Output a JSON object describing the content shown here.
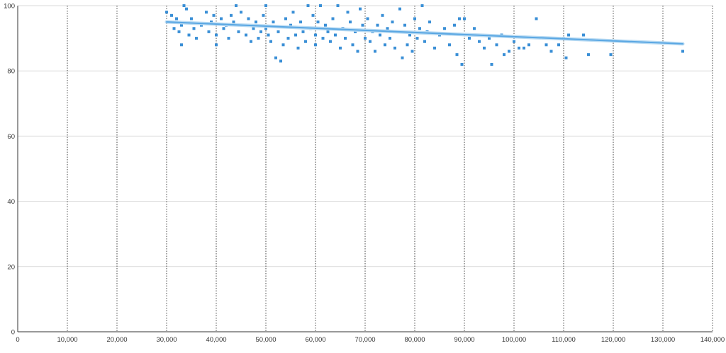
{
  "chart_data": {
    "type": "scatter",
    "title": "",
    "xlabel": "",
    "ylabel": "",
    "xlim": [
      0,
      140000
    ],
    "ylim": [
      0,
      100
    ],
    "x_ticks": [
      0,
      10000,
      20000,
      30000,
      40000,
      50000,
      60000,
      70000,
      80000,
      90000,
      100000,
      110000,
      120000,
      130000,
      140000
    ],
    "x_tick_labels": [
      "0",
      "10,000",
      "20,000",
      "30,000",
      "40,000",
      "50,000",
      "60,000",
      "70,000",
      "80,000",
      "90,000",
      "100,000",
      "110,000",
      "120,000",
      "130,000",
      "140,000"
    ],
    "y_ticks": [
      0,
      20,
      40,
      60,
      80,
      100
    ],
    "y_tick_labels": [
      "0",
      "20",
      "40",
      "60",
      "80",
      "100"
    ],
    "grid": {
      "x": "dotted vertical",
      "y": "solid horizontal"
    },
    "legend": "none",
    "colors": {
      "points": "#3a8fd6",
      "trendline": "#5aa7e3",
      "grid_x": "#444444",
      "grid_y": "#d9d9d9",
      "axis": "#333333"
    },
    "trendline": {
      "x": [
        30000,
        134000
      ],
      "y": [
        95.0,
        88.3
      ]
    },
    "points": [
      [
        30000,
        98
      ],
      [
        30500,
        95
      ],
      [
        31000,
        97
      ],
      [
        31500,
        93
      ],
      [
        32000,
        96
      ],
      [
        32500,
        92
      ],
      [
        33000,
        94
      ],
      [
        33000,
        88
      ],
      [
        33500,
        100
      ],
      [
        34000,
        99
      ],
      [
        34500,
        91
      ],
      [
        35000,
        96
      ],
      [
        35500,
        93
      ],
      [
        36000,
        90
      ],
      [
        37000,
        94
      ],
      [
        38000,
        98
      ],
      [
        38500,
        92
      ],
      [
        39000,
        95
      ],
      [
        39500,
        97
      ],
      [
        40000,
        88
      ],
      [
        40000,
        91
      ],
      [
        41000,
        96
      ],
      [
        41500,
        93
      ],
      [
        42000,
        94
      ],
      [
        42500,
        90
      ],
      [
        43000,
        97
      ],
      [
        43500,
        95
      ],
      [
        44000,
        100
      ],
      [
        44500,
        92
      ],
      [
        45000,
        98
      ],
      [
        45500,
        94
      ],
      [
        46000,
        91
      ],
      [
        46500,
        96
      ],
      [
        47000,
        89
      ],
      [
        47500,
        93
      ],
      [
        48000,
        95
      ],
      [
        48500,
        90
      ],
      [
        49000,
        92
      ],
      [
        49500,
        97
      ],
      [
        50000,
        100
      ],
      [
        50000,
        93
      ],
      [
        50500,
        91
      ],
      [
        51000,
        89
      ],
      [
        51500,
        95
      ],
      [
        52000,
        84
      ],
      [
        52500,
        92
      ],
      [
        53000,
        83
      ],
      [
        53500,
        88
      ],
      [
        54000,
        96
      ],
      [
        54500,
        90
      ],
      [
        55000,
        94
      ],
      [
        55500,
        98
      ],
      [
        56000,
        91
      ],
      [
        56500,
        87
      ],
      [
        57000,
        95
      ],
      [
        57500,
        92
      ],
      [
        58000,
        89
      ],
      [
        58500,
        100
      ],
      [
        59000,
        93
      ],
      [
        59500,
        97
      ],
      [
        60000,
        91
      ],
      [
        60000,
        88
      ],
      [
        60500,
        95
      ],
      [
        61000,
        100
      ],
      [
        61500,
        90
      ],
      [
        62000,
        94
      ],
      [
        62500,
        92
      ],
      [
        63000,
        89
      ],
      [
        63500,
        96
      ],
      [
        64000,
        91
      ],
      [
        64500,
        100
      ],
      [
        65000,
        87
      ],
      [
        65500,
        93
      ],
      [
        66000,
        90
      ],
      [
        66500,
        98
      ],
      [
        67000,
        95
      ],
      [
        67500,
        88
      ],
      [
        68000,
        92
      ],
      [
        68500,
        86
      ],
      [
        69000,
        99
      ],
      [
        69500,
        94
      ],
      [
        70000,
        90
      ],
      [
        70500,
        96
      ],
      [
        71000,
        89
      ],
      [
        71500,
        92
      ],
      [
        72000,
        86
      ],
      [
        72500,
        94
      ],
      [
        73000,
        91
      ],
      [
        73500,
        97
      ],
      [
        74000,
        88
      ],
      [
        74500,
        93
      ],
      [
        75000,
        90
      ],
      [
        75500,
        95
      ],
      [
        76000,
        87
      ],
      [
        76500,
        92
      ],
      [
        77000,
        99
      ],
      [
        77500,
        84
      ],
      [
        78000,
        94
      ],
      [
        78500,
        88
      ],
      [
        79000,
        91
      ],
      [
        79500,
        86
      ],
      [
        80000,
        96
      ],
      [
        80500,
        90
      ],
      [
        81000,
        93
      ],
      [
        81500,
        100
      ],
      [
        82000,
        89
      ],
      [
        82500,
        92
      ],
      [
        83000,
        95
      ],
      [
        84000,
        87
      ],
      [
        85000,
        91
      ],
      [
        86000,
        93
      ],
      [
        87000,
        88
      ],
      [
        88000,
        94
      ],
      [
        88500,
        85
      ],
      [
        89000,
        96
      ],
      [
        89500,
        82
      ],
      [
        90000,
        96
      ],
      [
        91000,
        90
      ],
      [
        92000,
        93
      ],
      [
        93000,
        89
      ],
      [
        94000,
        87
      ],
      [
        95000,
        90
      ],
      [
        95500,
        82
      ],
      [
        96500,
        88
      ],
      [
        97500,
        91
      ],
      [
        98000,
        85
      ],
      [
        99000,
        86
      ],
      [
        100000,
        89
      ],
      [
        101000,
        87
      ],
      [
        102000,
        87
      ],
      [
        103000,
        88
      ],
      [
        104500,
        96
      ],
      [
        106500,
        88
      ],
      [
        107500,
        86
      ],
      [
        109000,
        88
      ],
      [
        110000,
        90
      ],
      [
        110500,
        84
      ],
      [
        111000,
        91
      ],
      [
        114000,
        91
      ],
      [
        115000,
        85
      ],
      [
        119500,
        85
      ],
      [
        134000,
        86
      ]
    ]
  }
}
